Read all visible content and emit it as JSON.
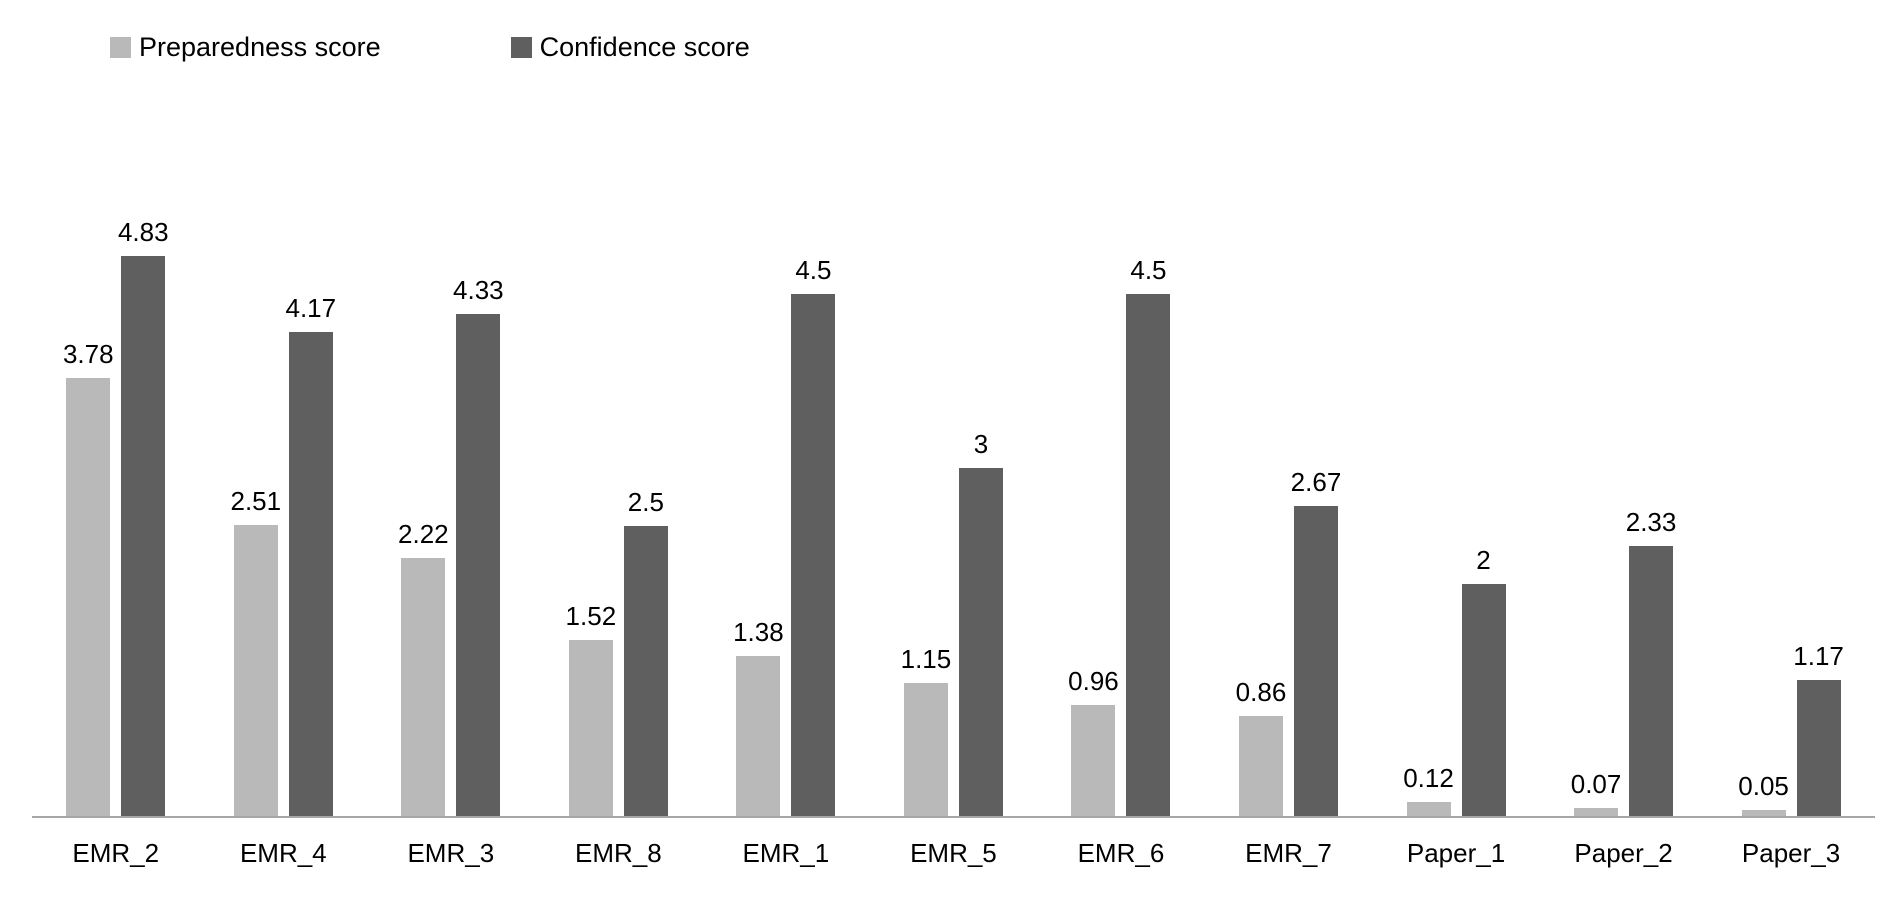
{
  "colors": {
    "preparedness": "#b9b9b9",
    "confidence": "#5f5f5f",
    "axis_line": "#a6a6a6",
    "label_text": "#000000",
    "background": "#ffffff"
  },
  "legend": {
    "items": [
      {
        "label": "Preparedness score",
        "color": "#b9b9b9"
      },
      {
        "label": "Confidence score",
        "color": "#5f5f5f"
      }
    ],
    "position": "top-left"
  },
  "chart_data": {
    "type": "bar",
    "title": "",
    "xlabel": "",
    "ylabel": "",
    "ylim": [
      0,
      5
    ],
    "grid": false,
    "y_axis_visible": false,
    "data_labels": true,
    "categories": [
      "EMR_2",
      "EMR_4",
      "EMR_3",
      "EMR_8",
      "EMR_1",
      "EMR_5",
      "EMR_6",
      "EMR_7",
      "Paper_1",
      "Paper_2",
      "Paper_3"
    ],
    "series": [
      {
        "name": "Preparedness score",
        "color": "#b9b9b9",
        "values": [
          3.78,
          2.51,
          2.22,
          1.52,
          1.38,
          1.15,
          0.96,
          0.86,
          0.12,
          0.07,
          0.05
        ],
        "labels": [
          "3.78",
          "2.51",
          "2.22",
          "1.52",
          "1.38",
          "1.15",
          "0.96",
          "0.86",
          "0.12",
          "0.07",
          "0.05"
        ]
      },
      {
        "name": "Confidence score",
        "color": "#5f5f5f",
        "values": [
          4.83,
          4.17,
          4.33,
          2.5,
          4.5,
          3,
          4.5,
          2.67,
          2,
          2.33,
          1.17
        ],
        "labels": [
          "4.83",
          "4.17",
          "4.33",
          "2.5",
          "4.5",
          "3",
          "4.5",
          "2.67",
          "2",
          "2.33",
          "1.17"
        ]
      }
    ]
  }
}
